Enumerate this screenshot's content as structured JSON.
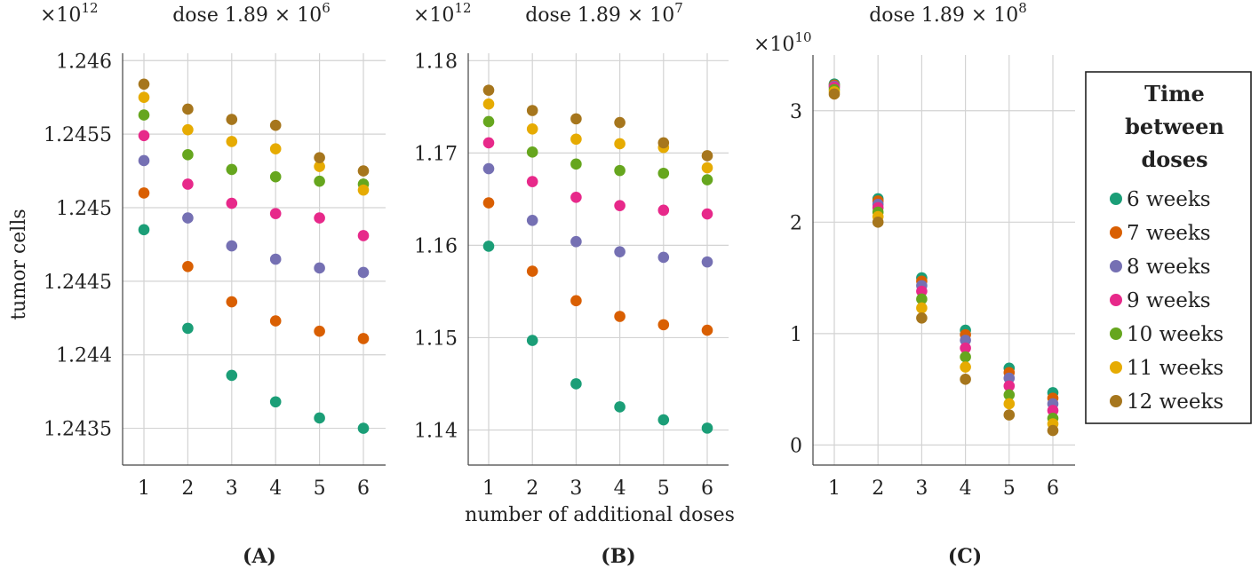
{
  "figure": {
    "ylabel": "tumor cells",
    "xlabel": "number of additional doses",
    "legend": {
      "title_lines": [
        "Time",
        "between",
        "doses"
      ],
      "labels": [
        "6 weeks",
        "7 weeks",
        "8 weeks",
        "9 weeks",
        "10 weeks",
        "11 weeks",
        "12 weeks"
      ],
      "colors": [
        "#1b9e77",
        "#d95f02",
        "#7570b3",
        "#e7298a",
        "#66a61e",
        "#e6ab02",
        "#a6761d"
      ]
    }
  },
  "chart_data": [
    {
      "type": "scatter",
      "panel_label": "(A)",
      "title_prefix": "dose 1.89 × 10",
      "title_exponent": "6",
      "multiplier_base": "×10",
      "multiplier_exp": "12",
      "x": [
        1,
        2,
        3,
        4,
        5,
        6
      ],
      "xticks": [
        "1",
        "2",
        "3",
        "4",
        "5",
        "6"
      ],
      "yticks": [
        1.2435,
        1.244,
        1.2445,
        1.245,
        1.2455,
        1.246
      ],
      "ytick_labels": [
        "1.2435",
        "1.244",
        "1.2445",
        "1.245",
        "1.2455",
        "1.246"
      ],
      "ylim": [
        1.24325,
        1.24605
      ],
      "series": [
        {
          "name": "6 weeks",
          "values": [
            1.24485,
            1.24418,
            1.24386,
            1.24368,
            1.24357,
            1.2435
          ]
        },
        {
          "name": "7 weeks",
          "values": [
            1.2451,
            1.2446,
            1.24436,
            1.24423,
            1.24416,
            1.24411
          ]
        },
        {
          "name": "8 weeks",
          "values": [
            1.24532,
            1.24493,
            1.24474,
            1.24465,
            1.24459,
            1.24456
          ]
        },
        {
          "name": "9 weeks",
          "values": [
            1.24549,
            1.24516,
            1.24503,
            1.24496,
            1.24493,
            1.24481
          ]
        },
        {
          "name": "10 weeks",
          "values": [
            1.24563,
            1.24536,
            1.24526,
            1.24521,
            1.24518,
            1.24516
          ]
        },
        {
          "name": "11 weeks",
          "values": [
            1.24575,
            1.24553,
            1.24545,
            1.2454,
            1.24528,
            1.24512
          ]
        },
        {
          "name": "12 weeks",
          "values": [
            1.24584,
            1.24567,
            1.2456,
            1.24556,
            1.24534,
            1.24525
          ]
        }
      ]
    },
    {
      "type": "scatter",
      "panel_label": "(B)",
      "title_prefix": "dose 1.89 × 10",
      "title_exponent": "7",
      "multiplier_base": "×10",
      "multiplier_exp": "12",
      "x": [
        1,
        2,
        3,
        4,
        5,
        6
      ],
      "xticks": [
        "1",
        "2",
        "3",
        "4",
        "5",
        "6"
      ],
      "yticks": [
        1.14,
        1.15,
        1.16,
        1.17,
        1.18
      ],
      "ytick_labels": [
        "1.14",
        "1.15",
        "1.16",
        "1.17",
        "1.18"
      ],
      "ylim": [
        1.1362,
        1.1808
      ],
      "series": [
        {
          "name": "6 weeks",
          "values": [
            1.1599,
            1.1497,
            1.145,
            1.1425,
            1.1411,
            1.1402
          ]
        },
        {
          "name": "7 weeks",
          "values": [
            1.1646,
            1.1572,
            1.154,
            1.1523,
            1.1514,
            1.1508
          ]
        },
        {
          "name": "8 weeks",
          "values": [
            1.1683,
            1.1627,
            1.1604,
            1.1593,
            1.1587,
            1.1582
          ]
        },
        {
          "name": "9 weeks",
          "values": [
            1.1711,
            1.1669,
            1.1652,
            1.1643,
            1.1638,
            1.1634
          ]
        },
        {
          "name": "10 weeks",
          "values": [
            1.1734,
            1.1701,
            1.1688,
            1.1681,
            1.1678,
            1.1671
          ]
        },
        {
          "name": "11 weeks",
          "values": [
            1.1753,
            1.1726,
            1.1715,
            1.171,
            1.1706,
            1.1684
          ]
        },
        {
          "name": "12 weeks",
          "values": [
            1.1768,
            1.1746,
            1.1737,
            1.1733,
            1.1711,
            1.1697
          ]
        }
      ]
    },
    {
      "type": "scatter",
      "panel_label": "(C)",
      "title_prefix": "dose 1.89 × 10",
      "title_exponent": "8",
      "multiplier_base": "×10",
      "multiplier_exp": "10",
      "x": [
        1,
        2,
        3,
        4,
        5,
        6
      ],
      "xticks": [
        "1",
        "2",
        "3",
        "4",
        "5",
        "6"
      ],
      "yticks": [
        0,
        1,
        2,
        3
      ],
      "ytick_labels": [
        "0",
        "1",
        "2",
        "3"
      ],
      "ylim": [
        -0.18,
        3.5
      ],
      "series": [
        {
          "name": "6 weeks",
          "values": [
            3.24,
            2.21,
            1.5,
            1.03,
            0.69,
            0.47
          ]
        },
        {
          "name": "7 weeks",
          "values": [
            3.23,
            2.19,
            1.47,
            0.99,
            0.65,
            0.42
          ]
        },
        {
          "name": "8 weeks",
          "values": [
            3.22,
            2.16,
            1.43,
            0.94,
            0.6,
            0.37
          ]
        },
        {
          "name": "9 weeks",
          "values": [
            3.21,
            2.13,
            1.38,
            0.87,
            0.53,
            0.31
          ]
        },
        {
          "name": "10 weeks",
          "values": [
            3.19,
            2.09,
            1.31,
            0.79,
            0.45,
            0.24
          ]
        },
        {
          "name": "11 weeks",
          "values": [
            3.17,
            2.05,
            1.23,
            0.7,
            0.37,
            0.19
          ]
        },
        {
          "name": "12 weeks",
          "values": [
            3.15,
            2.0,
            1.14,
            0.59,
            0.27,
            0.13
          ]
        }
      ]
    }
  ]
}
